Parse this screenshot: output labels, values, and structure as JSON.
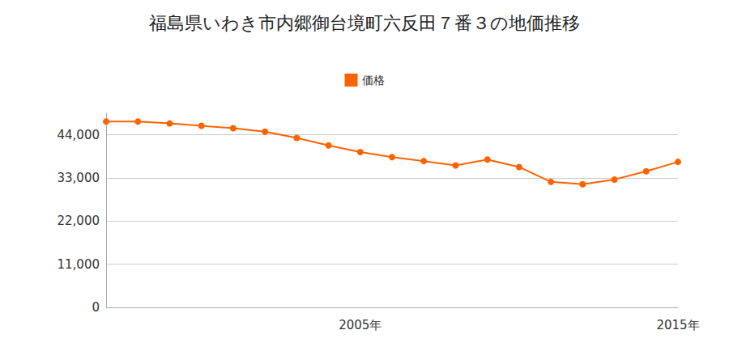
{
  "chart_data": {
    "type": "line",
    "title": "福島県いわき市内郷御台境町六反田７番３の地価推移",
    "categories": [
      null,
      null,
      null,
      null,
      null,
      null,
      null,
      null,
      "2005年",
      null,
      null,
      null,
      null,
      null,
      null,
      null,
      null,
      null,
      "2015年"
    ],
    "series": [
      {
        "name": "価格",
        "color": "#ff6200",
        "marker": "circle",
        "values": [
          47400,
          47400,
          46900,
          46300,
          45700,
          44800,
          43200,
          41300,
          39600,
          38300,
          37300,
          36200,
          37700,
          35800,
          32000,
          31400,
          32600,
          34700,
          37100
        ]
      }
    ],
    "ylim": [
      0,
      49500
    ],
    "yticks": [
      0,
      {
        "value": 11000,
        "label": "11,000"
      },
      {
        "value": 22000,
        "label": "22,000"
      },
      {
        "value": 33000,
        "label": "33,000"
      },
      {
        "value": 44000,
        "label": "44,000"
      }
    ],
    "grid": true,
    "legend": "top"
  }
}
